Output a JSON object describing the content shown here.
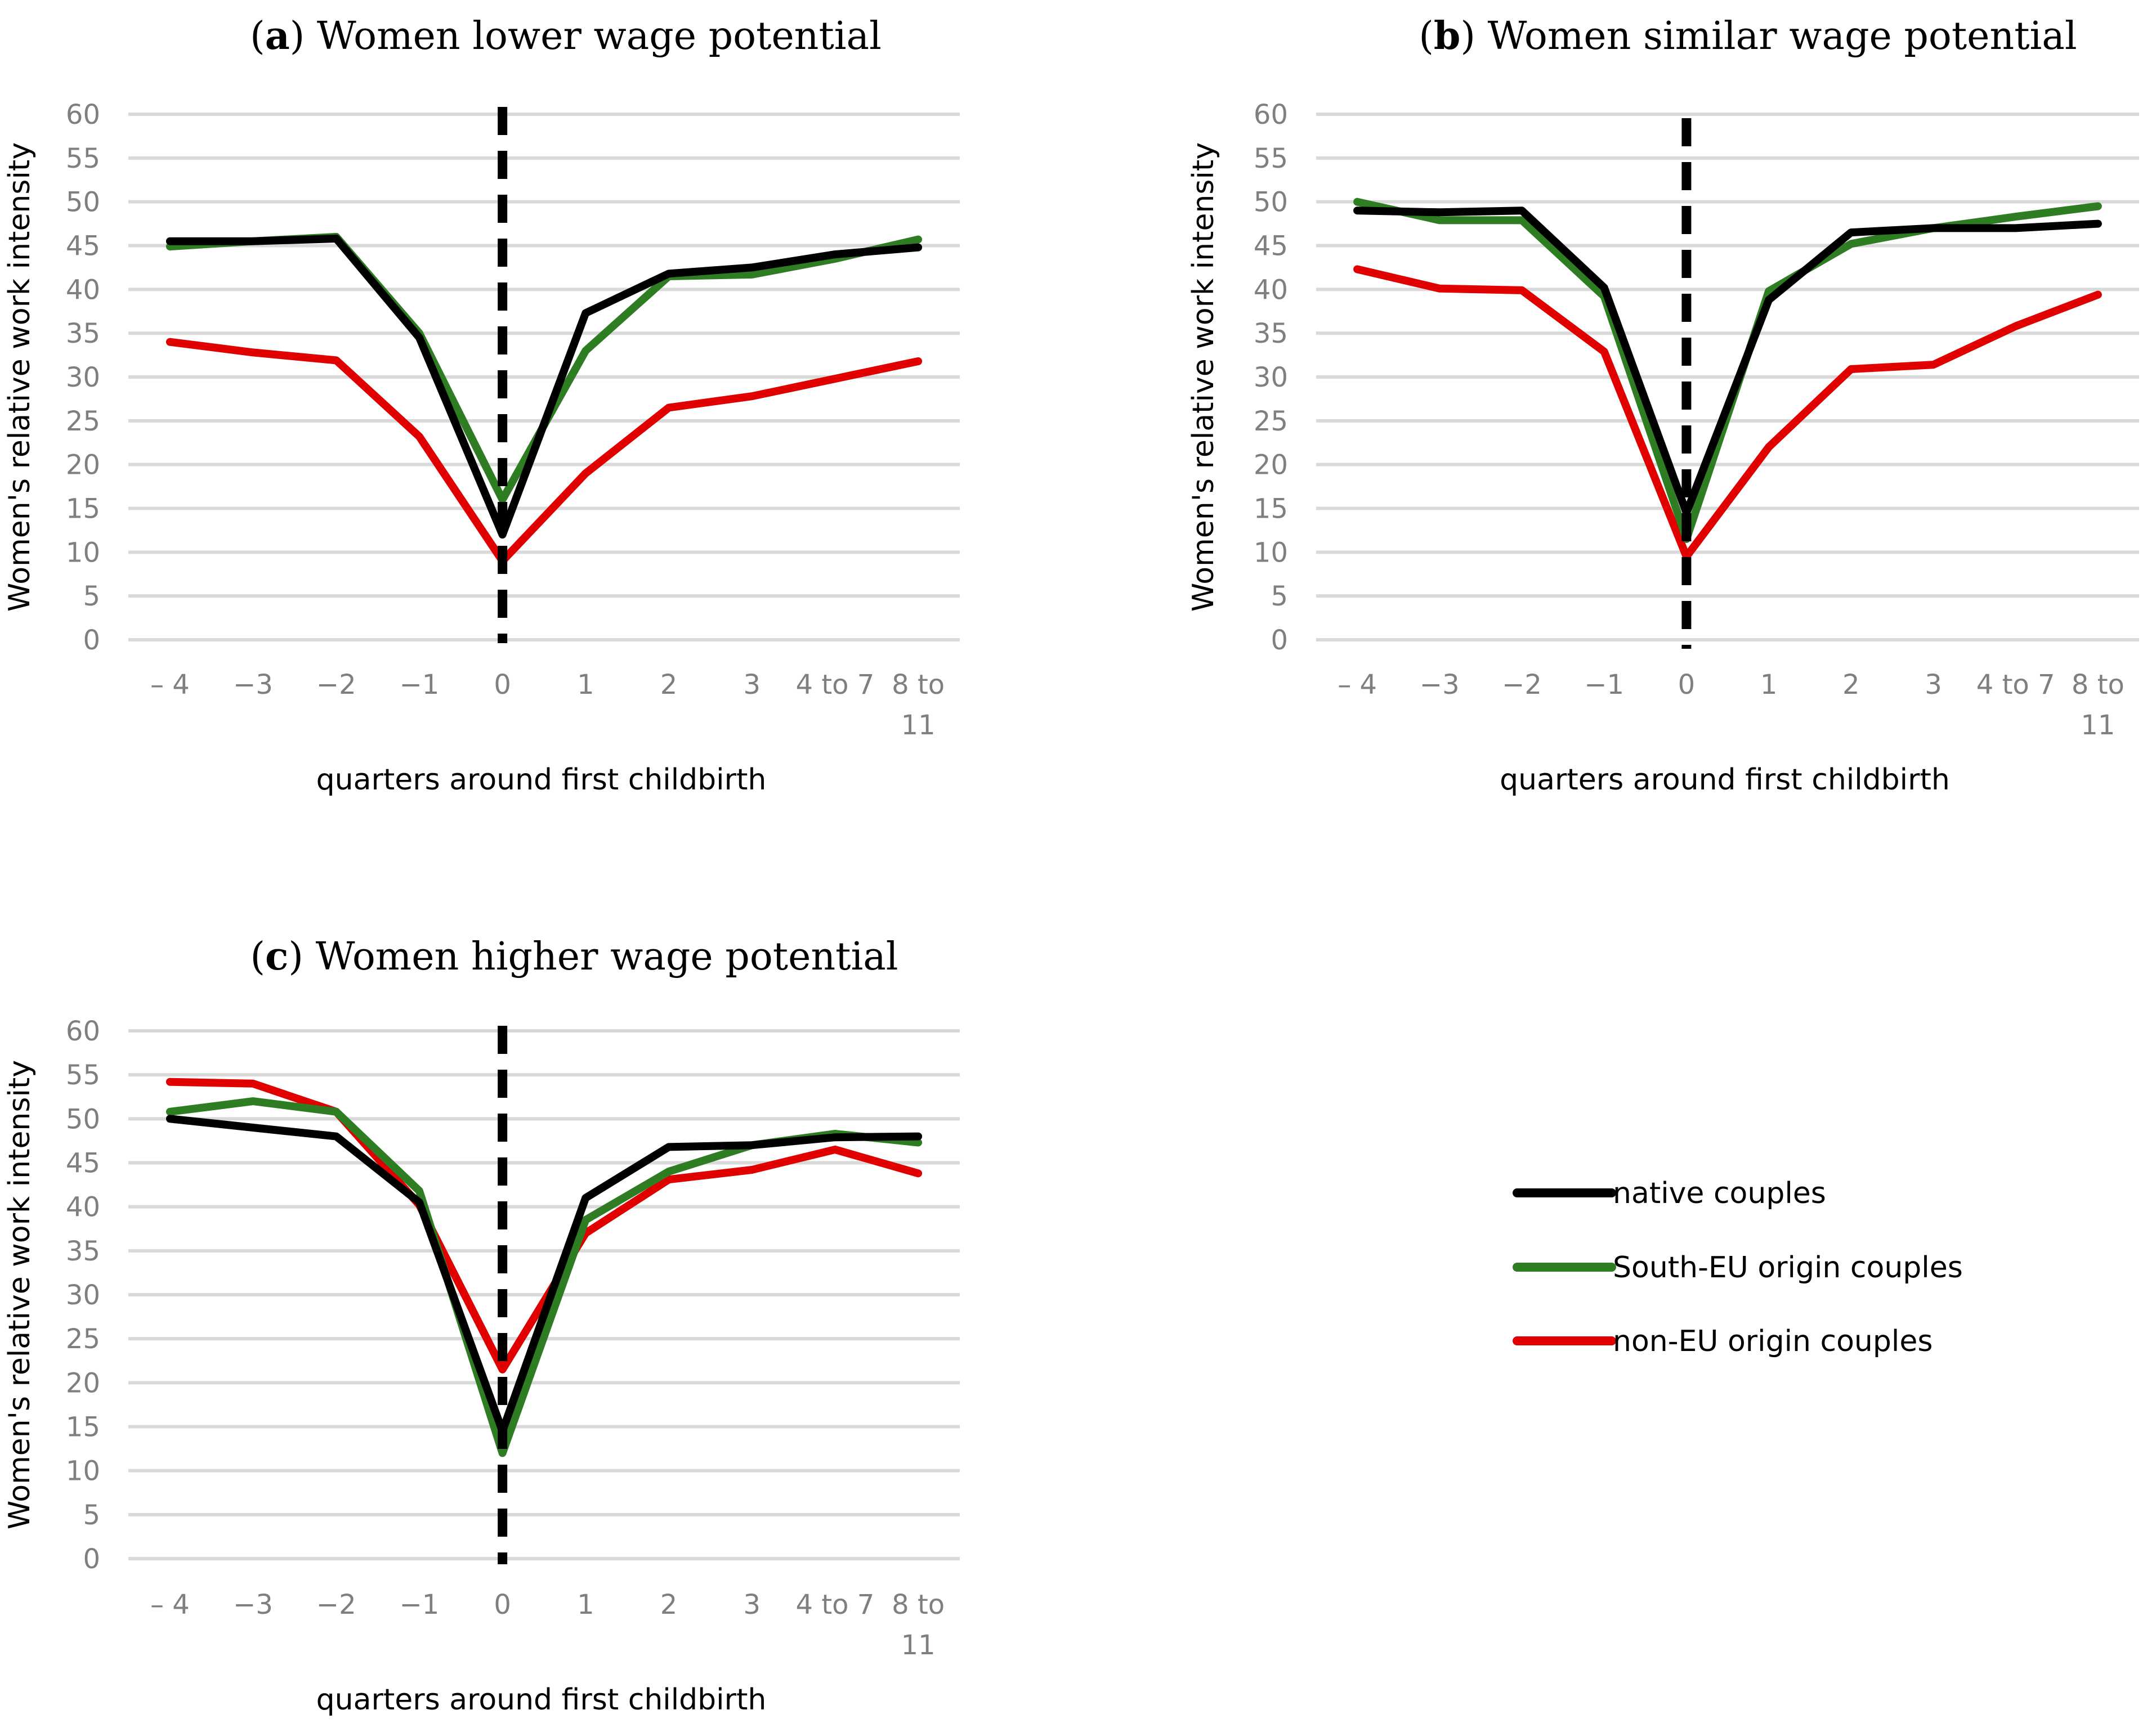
{
  "chart_data": [
    {
      "type": "line",
      "title": {
        "letter": "a",
        "text": "Women lower wage potential"
      },
      "xlabel": "quarters around first childbirth",
      "ylabel": "Women's relative work intensity",
      "ylim": [
        0,
        60
      ],
      "yticks": [
        "0",
        "5",
        "10",
        "15",
        "20",
        "25",
        "30",
        "35",
        "40",
        "45",
        "50",
        "55",
        "60"
      ],
      "categories": [
        "– 4",
        "−3",
        "−2",
        "−1",
        "0",
        "1",
        "2",
        "3",
        "4 to 7",
        "8 to 11"
      ],
      "category_lines": [
        [
          "– 4"
        ],
        [
          "−3"
        ],
        [
          "−2"
        ],
        [
          "−1"
        ],
        [
          "0"
        ],
        [
          "1"
        ],
        [
          "2"
        ],
        [
          "3"
        ],
        [
          "4 to 7"
        ],
        [
          "8 to",
          "11"
        ]
      ],
      "event_marker": {
        "category": "0",
        "style": "dashed"
      },
      "series": [
        {
          "name": "native couples",
          "values": [
            45.5,
            45.5,
            45.8,
            34.5,
            12.0,
            37.3,
            41.8,
            42.5,
            44.0,
            44.8
          ]
        },
        {
          "name": "South-EU origin couples",
          "values": [
            44.9,
            45.5,
            46.0,
            35.0,
            16.0,
            33.0,
            41.5,
            41.7,
            43.5,
            45.7
          ]
        },
        {
          "name": "non-EU origin couples",
          "values": [
            34.0,
            32.8,
            31.9,
            23.2,
            9.0,
            19.0,
            26.5,
            27.8,
            29.8,
            31.8
          ]
        }
      ]
    },
    {
      "type": "line",
      "title": {
        "letter": "b",
        "text": "Women similar wage potential"
      },
      "xlabel": "quarters around first childbirth",
      "ylabel": "Women's relative work intensity",
      "ylim": [
        0,
        60
      ],
      "yticks": [
        "0",
        "5",
        "10",
        "15",
        "20",
        "25",
        "30",
        "35",
        "40",
        "45",
        "50",
        "55",
        "60"
      ],
      "categories": [
        "– 4",
        "−3",
        "−2",
        "−1",
        "0",
        "1",
        "2",
        "3",
        "4 to 7",
        "8 to 11"
      ],
      "category_lines": [
        [
          "– 4"
        ],
        [
          "−3"
        ],
        [
          "−2"
        ],
        [
          "−1"
        ],
        [
          "0"
        ],
        [
          "1"
        ],
        [
          "2"
        ],
        [
          "3"
        ],
        [
          "4 to 7"
        ],
        [
          "8 to",
          "11"
        ]
      ],
      "event_marker": {
        "category": "0",
        "style": "dashed"
      },
      "series": [
        {
          "name": "native couples",
          "values": [
            49.0,
            48.8,
            49.0,
            40.2,
            14.5,
            38.8,
            46.5,
            47.0,
            47.0,
            47.5
          ]
        },
        {
          "name": "South-EU origin couples",
          "values": [
            50.0,
            47.9,
            47.9,
            39.2,
            11.5,
            39.8,
            45.2,
            47.0,
            48.3,
            49.5
          ]
        },
        {
          "name": "non-EU origin couples",
          "values": [
            42.3,
            40.1,
            39.9,
            32.9,
            9.5,
            22.0,
            30.9,
            31.4,
            35.8,
            39.4
          ]
        }
      ]
    },
    {
      "type": "line",
      "title": {
        "letter": "c",
        "text": "Women higher wage potential"
      },
      "xlabel": "quarters around first childbirth",
      "ylabel": "Women's relative work intensity",
      "ylim": [
        0,
        60
      ],
      "yticks": [
        "0",
        "5",
        "10",
        "15",
        "20",
        "25",
        "30",
        "35",
        "40",
        "45",
        "50",
        "55",
        "60"
      ],
      "categories": [
        "– 4",
        "−3",
        "−2",
        "−1",
        "0",
        "1",
        "2",
        "3",
        "4 to 7",
        "8 to 11"
      ],
      "category_lines": [
        [
          "– 4"
        ],
        [
          "−3"
        ],
        [
          "−2"
        ],
        [
          "−1"
        ],
        [
          "0"
        ],
        [
          "1"
        ],
        [
          "2"
        ],
        [
          "3"
        ],
        [
          "4 to 7"
        ],
        [
          "8 to",
          "11"
        ]
      ],
      "event_marker": {
        "category": "0",
        "style": "dashed"
      },
      "series": [
        {
          "name": "native couples",
          "values": [
            50.0,
            49.0,
            48.0,
            40.5,
            14.5,
            41.0,
            46.8,
            47.0,
            47.9,
            48.0
          ]
        },
        {
          "name": "South-EU origin couples",
          "values": [
            50.8,
            52.0,
            50.8,
            41.8,
            12.0,
            38.5,
            44.0,
            47.0,
            48.3,
            47.3
          ]
        },
        {
          "name": "non-EU origin couples",
          "values": [
            54.2,
            54.0,
            50.8,
            40.2,
            21.5,
            37.0,
            43.1,
            44.2,
            46.5,
            43.8
          ]
        }
      ]
    }
  ],
  "legend": {
    "items": [
      {
        "name": "native couples",
        "color": "#000000"
      },
      {
        "name": "South-EU origin couples",
        "color": "#2e7d22"
      },
      {
        "name": "non-EU origin couples",
        "color": "#e00000"
      }
    ]
  },
  "colors": {
    "native": "#000000",
    "south_eu": "#2e7d22",
    "non_eu": "#e00000",
    "grid": "#d9d9d9",
    "ticks": "#7f7f7f"
  }
}
